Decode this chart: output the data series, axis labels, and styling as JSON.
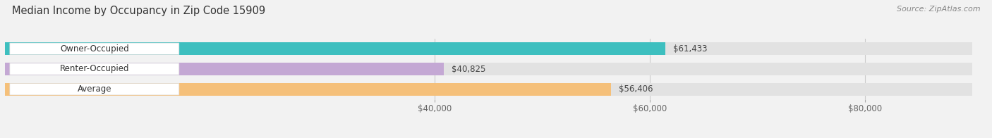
{
  "title": "Median Income by Occupancy in Zip Code 15909",
  "source": "Source: ZipAtlas.com",
  "categories": [
    "Owner-Occupied",
    "Renter-Occupied",
    "Average"
  ],
  "values": [
    61433,
    40825,
    56406
  ],
  "bar_colors": [
    "#3dbfbf",
    "#c4a8d4",
    "#f5c07a"
  ],
  "background_color": "#f2f2f2",
  "bar_background_color": "#e2e2e2",
  "xmin": 0,
  "xmax": 90000,
  "xlim_display": [
    30000,
    90000
  ],
  "xticks": [
    40000,
    60000,
    80000
  ],
  "xtick_labels": [
    "$40,000",
    "$60,000",
    "$80,000"
  ],
  "value_labels": [
    "$61,433",
    "$40,825",
    "$56,406"
  ],
  "figsize": [
    14.06,
    1.96
  ],
  "dpi": 100
}
